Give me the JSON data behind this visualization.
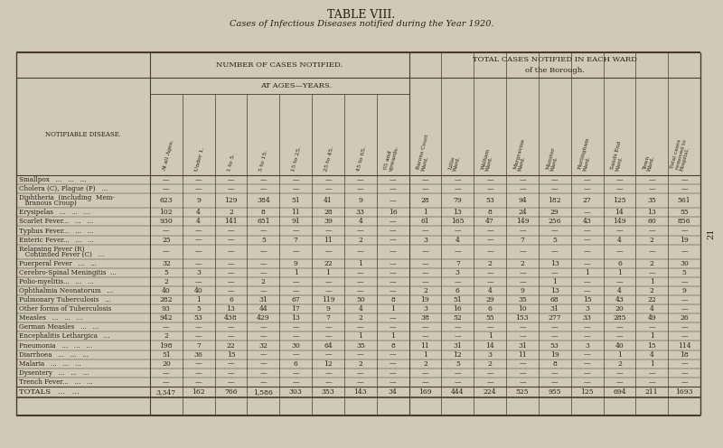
{
  "title": "TABLE VIII.",
  "subtitle": "Cases of Infectious Diseases notified during the Year 1920.",
  "bg_color": "#cfc9b8",
  "line_color": "#4a3c28",
  "text_color": "#2a2016",
  "diseases": [
    [
      "Smallpox",
      "...",
      "...",
      "..."
    ],
    [
      "Cholera (C), Plague (P)",
      "..."
    ],
    [
      "Diphtheria  (including  Mem-",
      "   branous Croup)"
    ],
    [
      "Erysipelas",
      "...",
      "...",
      "..."
    ],
    [
      "Scarlet Fever...",
      "...",
      "...",
      "..."
    ],
    [
      "Typhus Fever...",
      "...",
      "..."
    ],
    [
      "Enteric Fever...",
      "...",
      "..."
    ],
    [
      "Relapsing Fever (R)",
      "   Continued Fever (C)",
      "..."
    ],
    [
      "Puerperal Fever",
      "...",
      "..."
    ],
    [
      "Cerebro-Spinal Meningitis",
      "..."
    ],
    [
      "Polio-myelitis...",
      "...",
      "..."
    ],
    [
      "Ophthalmia Neonatorum",
      "..."
    ],
    [
      "Pulmonary Tuberculosis",
      "..."
    ],
    [
      "Other forms of Tuberculosis"
    ],
    [
      "Measles",
      "...",
      "...",
      "..."
    ],
    [
      "German Measles",
      "...",
      "..."
    ],
    [
      "Encephalitis Lethargica",
      "..."
    ],
    [
      "Pneumonia",
      "...",
      "...",
      "..."
    ],
    [
      "Diarrhoea",
      "...",
      "...",
      "..."
    ],
    [
      "Malaria",
      "...",
      "...",
      "..."
    ],
    [
      "Dysentery",
      "...",
      "...",
      "..."
    ],
    [
      "Trench Fever...",
      "...",
      "..."
    ]
  ],
  "disease_labels": [
    "Smallpox   ...   ...   ...",
    "Cholera (C), Plague (P)   ...",
    "Diphtheria  (including  Mem-\n   branous Croup)",
    "Erysipelas   ...   ...   ...",
    "Scarlet Fever...   ...   ...",
    "Typhus Fever...   ...   ...",
    "Enteric Fever...   ...   ...",
    "Relapsing Fever (R)\n   Continued Fever (C)   ...",
    "Puerperal Fever   ...   ...",
    "Cerebro-Spinal Meningitis  ...",
    "Polio-myelitis...   ...   ...",
    "Ophthalmia Neonatorum   ...",
    "Pulmonary Tuberculosis   ...",
    "Other forms of Tuberculosis",
    "Measles   ...   ...   ...",
    "German Measles   ...   ...",
    "Encephalitis Lethargica   ...",
    "Pneumonia   ...   ...   ...",
    "Diarrhoea   ...   ...   ...",
    "Malaria   ...   ...   ...",
    "Dysentery   ...   ...   ...",
    "Trench Fever...   ...   ..."
  ],
  "data": [
    [
      "—",
      "—",
      "—",
      "—",
      "—",
      "—",
      "—",
      "—",
      "—",
      "—",
      "—",
      "—",
      "—",
      "—",
      "—",
      "—",
      "—"
    ],
    [
      "—",
      "—",
      "—",
      "—",
      "—",
      "—",
      "—",
      "—",
      "—",
      "—",
      "—",
      "—",
      "—",
      "—",
      "—",
      "—",
      "—"
    ],
    [
      "623",
      "9",
      "129",
      "384",
      "51",
      "41",
      "9",
      "—",
      "28",
      "79",
      "53",
      "94",
      "182",
      "27",
      "125",
      "35",
      "561"
    ],
    [
      "102",
      "4",
      "2",
      "8",
      "11",
      "28",
      "33",
      "16",
      "1",
      "13",
      "8",
      "24",
      "29",
      "—",
      "14",
      "13",
      "55"
    ],
    [
      "930",
      "4",
      "141",
      "651",
      "91",
      "39",
      "4",
      "—",
      "61",
      "165",
      "47",
      "149",
      "256",
      "43",
      "149",
      "60",
      "856"
    ],
    [
      "—",
      "—",
      "—",
      "—",
      "—",
      "—",
      "—",
      "—",
      "—",
      "—",
      "—",
      "—",
      "—",
      "—",
      "—",
      "—",
      "—"
    ],
    [
      "25",
      "—",
      "—",
      "5",
      "7",
      "11",
      "2",
      "—",
      "3",
      "4",
      "—",
      "7",
      "5",
      "—",
      "4",
      "2",
      "19"
    ],
    [
      "—",
      "—",
      "—",
      "—",
      "—",
      "—",
      "—",
      "—",
      "—",
      "—",
      "—",
      "—",
      "—",
      "—",
      "—",
      "—",
      "—"
    ],
    [
      "32",
      "—",
      "—",
      "—",
      "9",
      "22",
      "1",
      "—",
      "—",
      "7",
      "2",
      "2",
      "13",
      "—",
      "6",
      "2",
      "30"
    ],
    [
      "5",
      "3",
      "—",
      "—",
      "1",
      "1",
      "—",
      "—",
      "—",
      "3",
      "—",
      "—",
      "—",
      "1",
      "1",
      "—",
      "5"
    ],
    [
      "2",
      "—",
      "—",
      "2",
      "—",
      "—",
      "—",
      "—",
      "—",
      "—",
      "—",
      "—",
      "1",
      "—",
      "—",
      "1",
      "—"
    ],
    [
      "40",
      "40",
      "—",
      "—",
      "—",
      "—",
      "—",
      "—",
      "2",
      "6",
      "4",
      "9",
      "13",
      "—",
      "4",
      "2",
      "9"
    ],
    [
      "282",
      "1",
      "6",
      "31",
      "67",
      "119",
      "50",
      "8",
      "19",
      "51",
      "29",
      "35",
      "68",
      "15",
      "43",
      "22",
      "—"
    ],
    [
      "93",
      "5",
      "13",
      "44",
      "17",
      "9",
      "4",
      "1",
      "3",
      "16",
      "6",
      "10",
      "31",
      "3",
      "20",
      "4",
      "—"
    ],
    [
      "942",
      "53",
      "438",
      "429",
      "13",
      "7",
      "2",
      "—",
      "38",
      "52",
      "55",
      "153",
      "277",
      "33",
      "285",
      "49",
      "26"
    ],
    [
      "—",
      "—",
      "—",
      "—",
      "—",
      "—",
      "—",
      "—",
      "—",
      "—",
      "—",
      "—",
      "—",
      "—",
      "—",
      "—",
      "—"
    ],
    [
      "2",
      "—",
      "—",
      "—",
      "—",
      "—",
      "1",
      "1",
      "—",
      "—",
      "1",
      "—",
      "—",
      "—",
      "—",
      "1",
      "—"
    ],
    [
      "198",
      "7",
      "22",
      "32",
      "30",
      "64",
      "35",
      "8",
      "11",
      "31",
      "14",
      "31",
      "53",
      "3",
      "40",
      "15",
      "114"
    ],
    [
      "51",
      "36",
      "15",
      "—",
      "—",
      "—",
      "—",
      "—",
      "1",
      "12",
      "3",
      "11",
      "19",
      "—",
      "1",
      "4",
      "18"
    ],
    [
      "20",
      "—",
      "—",
      "—",
      "6",
      "12",
      "2",
      "—",
      "2",
      "5",
      "2",
      "—",
      "8",
      "—",
      "2",
      "1",
      "—"
    ],
    [
      "—",
      "—",
      "—",
      "—",
      "—",
      "—",
      "—",
      "—",
      "—",
      "—",
      "—",
      "—",
      "—",
      "—",
      "—",
      "—",
      "—"
    ],
    [
      "—",
      "—",
      "—",
      "—",
      "—",
      "—",
      "—",
      "—",
      "—",
      "—",
      "—",
      "—",
      "—",
      "—",
      "—",
      "—",
      "—"
    ]
  ],
  "totals": [
    "3,347",
    "162",
    "766",
    "1,586",
    "303",
    "353",
    "143",
    "34",
    "169",
    "444",
    "224",
    "525",
    "955",
    "125",
    "694",
    "211",
    "1693"
  ],
  "age_headers": [
    "At all Ages.",
    "Under 1.",
    "1 to 5.",
    "5 to 15.",
    "15 to 25.",
    "25 to 45.",
    "45 to 65.",
    "65 and\nupwards."
  ],
  "ward_headers": [
    "Barons Court\nWard.",
    "Lillie\nWard.",
    "Walham\nWard.",
    "Margravine\nWard.",
    "Munster\nWard.",
    "Hurlingham\nWard.",
    "Sands End\nWard.",
    "Town\nWard.",
    "Total cases\nremoved to\nHospital."
  ],
  "two_line_rows": [
    2,
    7
  ],
  "side_number": "21"
}
